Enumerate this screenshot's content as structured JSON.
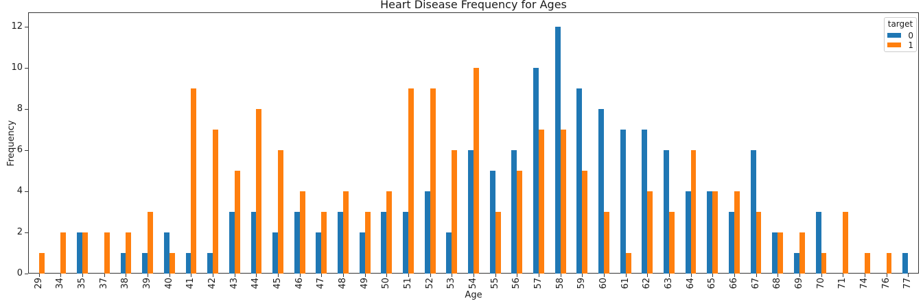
{
  "chart_data": {
    "type": "bar",
    "title": "Heart Disease Frequency for Ages",
    "xlabel": "Age",
    "ylabel": "Frequency",
    "categories": [
      "29",
      "34",
      "35",
      "37",
      "38",
      "39",
      "40",
      "41",
      "42",
      "43",
      "44",
      "45",
      "46",
      "47",
      "48",
      "49",
      "50",
      "51",
      "52",
      "53",
      "54",
      "55",
      "56",
      "57",
      "58",
      "59",
      "60",
      "61",
      "62",
      "63",
      "64",
      "65",
      "66",
      "67",
      "68",
      "69",
      "70",
      "71",
      "74",
      "76",
      "77"
    ],
    "series": [
      {
        "name": "0",
        "color": "#1f77b4",
        "values": [
          0,
          0,
          2,
          0,
          1,
          1,
          2,
          1,
          1,
          3,
          3,
          2,
          3,
          2,
          3,
          2,
          3,
          3,
          4,
          2,
          6,
          5,
          6,
          10,
          12,
          9,
          8,
          7,
          7,
          6,
          4,
          4,
          3,
          6,
          2,
          1,
          3,
          0,
          0,
          0,
          1
        ]
      },
      {
        "name": "1",
        "color": "#ff7f0e",
        "values": [
          1,
          2,
          2,
          2,
          2,
          3,
          1,
          9,
          7,
          5,
          8,
          6,
          4,
          3,
          4,
          3,
          4,
          9,
          9,
          6,
          10,
          3,
          5,
          7,
          7,
          5,
          3,
          1,
          4,
          3,
          6,
          4,
          4,
          3,
          2,
          2,
          1,
          3,
          1,
          1,
          0
        ]
      }
    ],
    "legend": {
      "title": "target",
      "position": "upper right"
    },
    "yticks": [
      0,
      2,
      4,
      6,
      8,
      10,
      12
    ],
    "ylim": [
      0,
      12.7
    ],
    "grid": false,
    "bar_group_width_fraction": 0.5,
    "axis_color": "#333333"
  }
}
